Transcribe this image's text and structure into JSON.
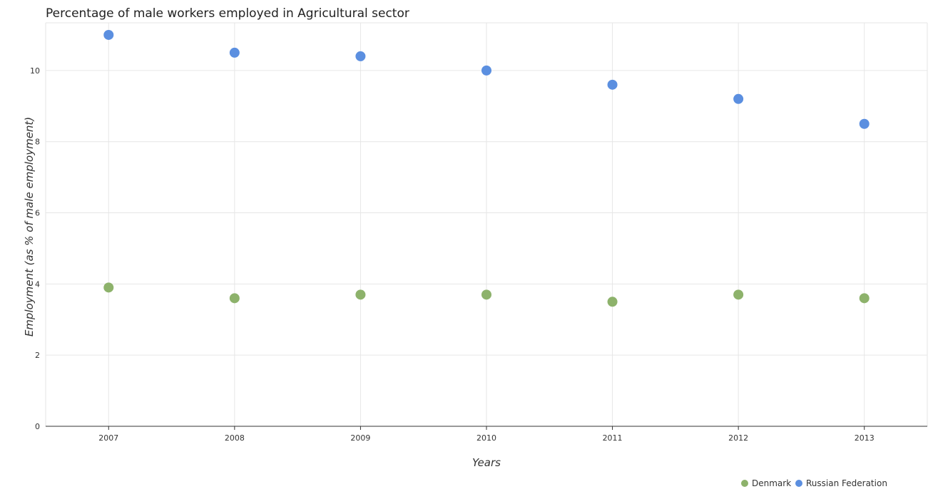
{
  "chart_data": {
    "type": "scatter",
    "title": "Percentage of male workers employed in Agricultural sector",
    "xlabel": "Years",
    "ylabel": "Employment (as % of male employment)",
    "categories": [
      "2007",
      "2008",
      "2009",
      "2010",
      "2011",
      "2012",
      "2013"
    ],
    "ylim": [
      0,
      11.34
    ],
    "yticks": [
      "0",
      "2",
      "4",
      "6",
      "8",
      "10"
    ],
    "grid": true,
    "legend_position": "bottom-right",
    "series": [
      {
        "name": "Denmark",
        "color": "#8db26b",
        "values": [
          3.9,
          3.6,
          3.7,
          3.7,
          3.5,
          3.7,
          3.6
        ]
      },
      {
        "name": "Russian Federation",
        "color": "#5b8fe0",
        "values": [
          11.0,
          10.5,
          10.4,
          10.0,
          9.6,
          9.2,
          8.5
        ]
      }
    ]
  }
}
